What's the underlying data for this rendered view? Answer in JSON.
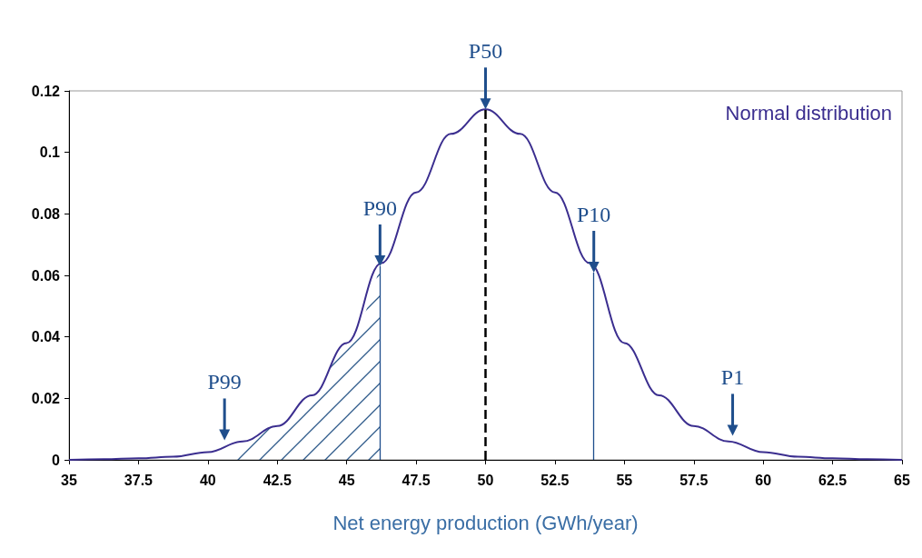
{
  "chart_data": {
    "type": "line",
    "xlabel": "Net energy production (GWh/year)",
    "x": [
      35,
      36.25,
      37.5,
      38.75,
      40,
      41.25,
      42.5,
      43.75,
      45,
      46.25,
      47.5,
      48.75,
      50,
      51.25,
      52.5,
      53.75,
      55,
      56.25,
      57.5,
      58.75,
      60,
      61.25,
      62.5,
      63.75,
      65
    ],
    "series": [
      {
        "name": "Normal distribution",
        "color": "#3b2e8f",
        "values": [
          0,
          0.0002,
          0.0005,
          0.001,
          0.0025,
          0.006,
          0.011,
          0.021,
          0.038,
          0.064,
          0.087,
          0.106,
          0.114,
          0.106,
          0.087,
          0.064,
          0.038,
          0.021,
          0.011,
          0.006,
          0.0025,
          0.001,
          0.0005,
          0.0002,
          0
        ]
      },
      {
        "type": "area",
        "color": "#2e5a8a",
        "x": [
          41,
          42.5,
          43.75,
          45,
          46.2
        ],
        "values": [
          0.005,
          0.011,
          0.021,
          0.038,
          0.063
        ]
      }
    ],
    "ref_lines": [
      {
        "axis": "x",
        "value": 46.2,
        "label": "P90",
        "color": "#1f4e8c"
      },
      {
        "axis": "x",
        "value": 50,
        "label": "P50",
        "color": "#000000",
        "line_style": "dashed"
      },
      {
        "axis": "x",
        "value": 53.9,
        "label": "P10",
        "color": "#1f4e8c"
      }
    ],
    "annotations": [
      {
        "text": "P99",
        "x": 40.6,
        "y": 0.004
      },
      {
        "text": "P1",
        "x": 58.9,
        "y": 0.0055
      }
    ],
    "xlim": [
      35,
      65
    ],
    "xticks": [
      35,
      37.5,
      40,
      42.5,
      45,
      47.5,
      50,
      52.5,
      55,
      57.5,
      60,
      62.5,
      65
    ],
    "ylim": [
      0,
      0.12
    ],
    "yticks": [
      0,
      0.02,
      0.04,
      0.06,
      0.08,
      0.1,
      0.12
    ],
    "legend": "top right",
    "marker": "none"
  }
}
